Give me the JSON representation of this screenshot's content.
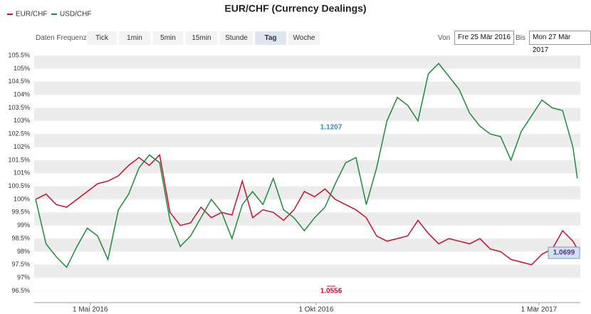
{
  "controls": {
    "frequency_label": "Daten Frequenz",
    "buttons": [
      "Tick",
      "1min",
      "5min",
      "15min",
      "Stunde",
      "Tag",
      "Woche"
    ],
    "active": "Tag",
    "from_label": "Von",
    "from": "Fre 25 Mär 2016",
    "to_label": "Bis",
    "to": "Mon 27 Mär 2017"
  },
  "chart_data": {
    "type": "line",
    "title": "EUR/CHF (Currency Dealings)",
    "x": [
      "2016-03-25",
      "2016-04-01",
      "2016-04-08",
      "2016-04-15",
      "2016-04-22",
      "2016-04-29",
      "2016-05-06",
      "2016-05-13",
      "2016-05-20",
      "2016-05-27",
      "2016-06-03",
      "2016-06-10",
      "2016-06-17",
      "2016-06-24",
      "2016-07-01",
      "2016-07-08",
      "2016-07-15",
      "2016-07-22",
      "2016-07-29",
      "2016-08-05",
      "2016-08-12",
      "2016-08-19",
      "2016-08-26",
      "2016-09-02",
      "2016-09-09",
      "2016-09-16",
      "2016-09-23",
      "2016-09-30",
      "2016-10-07",
      "2016-10-14",
      "2016-10-21",
      "2016-10-28",
      "2016-11-04",
      "2016-11-11",
      "2016-11-18",
      "2016-11-25",
      "2016-12-02",
      "2016-12-09",
      "2016-12-16",
      "2016-12-23",
      "2016-12-30",
      "2017-01-06",
      "2017-01-13",
      "2017-01-20",
      "2017-01-27",
      "2017-02-03",
      "2017-02-10",
      "2017-02-17",
      "2017-02-24",
      "2017-03-03",
      "2017-03-10",
      "2017-03-17",
      "2017-03-24",
      "2017-03-27"
    ],
    "series": [
      {
        "name": "EUR/CHF",
        "color": "#c8102e",
        "values": [
          100,
          100.2,
          99.8,
          99.7,
          100,
          100.3,
          100.6,
          100.7,
          100.9,
          101.3,
          101.6,
          101.3,
          101.7,
          99.5,
          99,
          99.1,
          99.7,
          99.3,
          99.5,
          99.4,
          100.7,
          99.3,
          99.6,
          99.5,
          99.2,
          99.6,
          100.3,
          100.1,
          100.4,
          100,
          99.8,
          99.6,
          99.3,
          98.6,
          98.4,
          98.5,
          98.6,
          99.2,
          98.7,
          98.3,
          98.5,
          98.4,
          98.3,
          98.5,
          98.1,
          98,
          97.7,
          97.6,
          97.5,
          97.9,
          98.1,
          98.8,
          98.4,
          98.1
        ]
      },
      {
        "name": "USD/CHF",
        "color": "#1f8a3a",
        "values": [
          100,
          98.3,
          97.8,
          97.4,
          98.2,
          98.9,
          98.6,
          97.7,
          99.6,
          100.2,
          101.2,
          101.7,
          101.4,
          99.2,
          98.2,
          98.6,
          99.3,
          100,
          99.5,
          98.5,
          99.8,
          100.3,
          99.8,
          100.8,
          99.6,
          99.3,
          98.8,
          99.3,
          99.7,
          100.6,
          101.4,
          101.6,
          99.8,
          101.2,
          103,
          103.9,
          103.6,
          103,
          104.8,
          105.2,
          104.7,
          104.2,
          103.3,
          102.8,
          102.5,
          102.4,
          101.5,
          102.6,
          103.2,
          103.8,
          103.5,
          103.4,
          102,
          100.8
        ]
      }
    ],
    "xlim": [
      "2016-03-24",
      "2017-03-29"
    ],
    "xticks": [
      {
        "value": "2016-05-01",
        "label": "1 Mai 2016"
      },
      {
        "value": "2016-10-01",
        "label": "1 Okt 2016"
      },
      {
        "value": "2017-03-01",
        "label": "1 Mär 2017"
      }
    ],
    "ylim": [
      96.05,
      105.72
    ],
    "yticks": [
      {
        "value": 96.5,
        "label": "96.5%"
      },
      {
        "value": 97,
        "label": "97%"
      },
      {
        "value": 97.5,
        "label": "97.5%"
      },
      {
        "value": 98,
        "label": "98%"
      },
      {
        "value": 98.5,
        "label": "98.5%"
      },
      {
        "value": 99,
        "label": "99%"
      },
      {
        "value": 99.5,
        "label": "99.5%"
      },
      {
        "value": 100,
        "label": "100%"
      },
      {
        "value": 100.5,
        "label": "100.5%"
      },
      {
        "value": 101,
        "label": "101%"
      },
      {
        "value": 101.5,
        "label": "101.5%"
      },
      {
        "value": 102,
        "label": "102%"
      },
      {
        "value": 102.5,
        "label": "102.5%"
      },
      {
        "value": 103,
        "label": "103%"
      },
      {
        "value": 103.5,
        "label": "103.5%"
      },
      {
        "value": 104,
        "label": "104%"
      },
      {
        "value": 104.5,
        "label": "104.5%"
      },
      {
        "value": 105,
        "label": "105%"
      },
      {
        "value": 105.5,
        "label": "105.5%"
      }
    ],
    "annotations": [
      "1.1207",
      "1.0556",
      "1.0699"
    ],
    "legend": "top-left"
  }
}
